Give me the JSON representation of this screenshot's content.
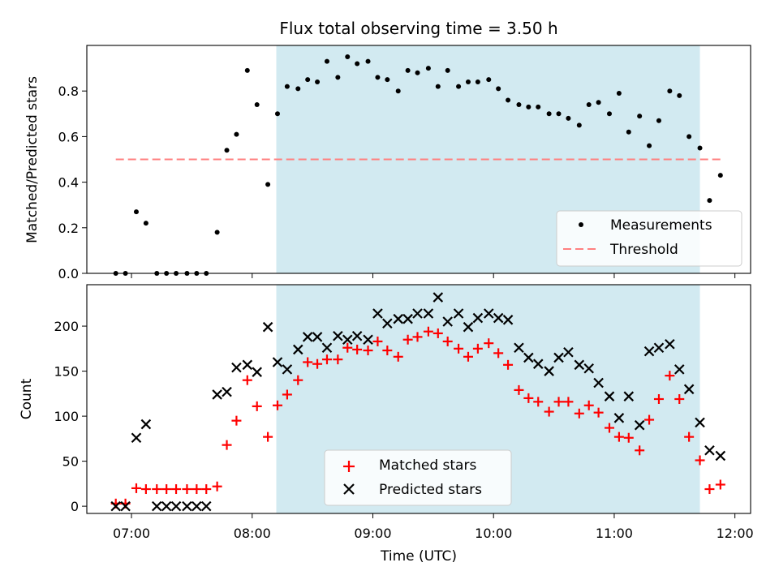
{
  "chart_data": {
    "type": "scatter",
    "title": "Flux total observing time = 3.50 h",
    "xlabel": "Time (UTC)",
    "x_unit": "hours UTC",
    "xlim": [
      6.63,
      12.13
    ],
    "xticks": [
      7,
      8,
      9,
      10,
      11,
      12
    ],
    "xtick_labels": [
      "07:00",
      "08:00",
      "09:00",
      "10:00",
      "11:00",
      "12:00"
    ],
    "highlight_span": [
      8.2,
      11.71
    ],
    "highlight_color": "#add8e6",
    "x": [
      6.87,
      6.95,
      7.04,
      7.12,
      7.21,
      7.29,
      7.37,
      7.46,
      7.54,
      7.62,
      7.71,
      7.79,
      7.87,
      7.96,
      8.04,
      8.13,
      8.21,
      8.29,
      8.38,
      8.46,
      8.54,
      8.62,
      8.71,
      8.79,
      8.87,
      8.96,
      9.04,
      9.12,
      9.21,
      9.29,
      9.37,
      9.46,
      9.54,
      9.62,
      9.71,
      9.79,
      9.87,
      9.96,
      10.04,
      10.12,
      10.21,
      10.29,
      10.37,
      10.46,
      10.54,
      10.62,
      10.71,
      10.79,
      10.87,
      10.96,
      11.04,
      11.12,
      11.21,
      11.29,
      11.37,
      11.46,
      11.54,
      11.62,
      11.71,
      11.79,
      11.88
    ],
    "top": {
      "ylabel": "Matched/Predicted stars",
      "ylim": [
        0,
        1.0
      ],
      "yticks": [
        0.0,
        0.2,
        0.4,
        0.6,
        0.8
      ],
      "ytick_labels": [
        "0.0",
        "0.2",
        "0.4",
        "0.6",
        "0.8"
      ],
      "threshold": 0.5,
      "threshold_x": [
        6.87,
        11.88
      ],
      "threshold_color": "#ff8080",
      "series": [
        {
          "name": "Measurements",
          "marker": "dot",
          "color": "#000000",
          "values": [
            0.0,
            0.0,
            0.27,
            0.22,
            0.0,
            0.0,
            0.0,
            0.0,
            0.0,
            0.0,
            0.18,
            0.54,
            0.61,
            0.89,
            0.74,
            0.39,
            0.7,
            0.82,
            0.81,
            0.85,
            0.84,
            0.93,
            0.86,
            0.95,
            0.92,
            0.93,
            0.86,
            0.85,
            0.8,
            0.89,
            0.88,
            0.9,
            0.82,
            0.89,
            0.82,
            0.84,
            0.84,
            0.85,
            0.81,
            0.76,
            0.74,
            0.73,
            0.73,
            0.7,
            0.7,
            0.68,
            0.65,
            0.74,
            0.75,
            0.7,
            0.79,
            0.62,
            0.69,
            0.56,
            0.67,
            0.8,
            0.78,
            0.6,
            0.55,
            0.32,
            0.43
          ]
        }
      ],
      "legend": {
        "position": "lower right",
        "entries": [
          "Measurements",
          "Threshold"
        ]
      }
    },
    "bottom": {
      "ylabel": "Count",
      "ylim": [
        -8,
        246
      ],
      "yticks": [
        0,
        50,
        100,
        150,
        200
      ],
      "ytick_labels": [
        "0",
        "50",
        "100",
        "150",
        "200"
      ],
      "series": [
        {
          "name": "Matched stars",
          "marker": "plus",
          "color": "#ff0000",
          "values": [
            3,
            3,
            20,
            19,
            19,
            19,
            19,
            19,
            19,
            19,
            22,
            68,
            95,
            140,
            111,
            77,
            112,
            124,
            140,
            160,
            158,
            163,
            163,
            176,
            174,
            173,
            183,
            173,
            166,
            185,
            188,
            194,
            192,
            183,
            175,
            166,
            175,
            181,
            170,
            157,
            129,
            120,
            116,
            105,
            116,
            116,
            103,
            112,
            104,
            87,
            77,
            76,
            62,
            96,
            119,
            145,
            119,
            77,
            51,
            19,
            24
          ]
        },
        {
          "name": "Predicted stars",
          "marker": "x",
          "color": "#000000",
          "values": [
            0,
            0,
            76,
            91,
            0,
            0,
            0,
            0,
            0,
            0,
            124,
            127,
            154,
            157,
            149,
            199,
            160,
            152,
            174,
            188,
            188,
            176,
            189,
            185,
            189,
            185,
            214,
            203,
            208,
            208,
            214,
            214,
            232,
            205,
            214,
            199,
            209,
            214,
            209,
            207,
            176,
            165,
            158,
            150,
            165,
            171,
            157,
            153,
            137,
            122,
            98,
            122,
            90,
            172,
            176,
            180,
            152,
            130,
            93,
            62,
            56
          ]
        }
      ],
      "legend": {
        "position": "lower center",
        "entries": [
          "Matched stars",
          "Predicted stars"
        ]
      }
    }
  }
}
